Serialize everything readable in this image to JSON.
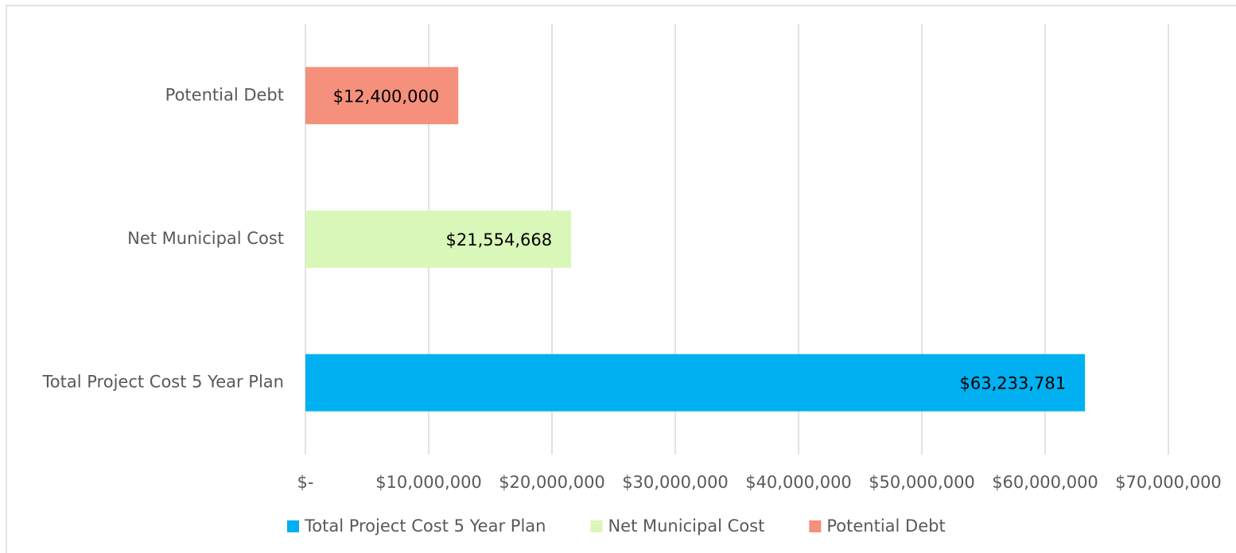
{
  "chart_data": {
    "type": "bar",
    "orientation": "horizontal",
    "categories": [
      "Total Project Cost 5 Year Plan",
      "Net Municipal Cost",
      "Potential Debt"
    ],
    "series": [
      {
        "name": "Total Project Cost 5 Year Plan",
        "color": "#00b0f0",
        "values": [
          63233781,
          null,
          null
        ],
        "value_labels": [
          "$63,233,781",
          null,
          null
        ]
      },
      {
        "name": "Net Municipal Cost",
        "color": "#d9f7b9",
        "values": [
          null,
          21554668,
          null
        ],
        "value_labels": [
          null,
          "$21,554,668",
          null
        ]
      },
      {
        "name": "Potential Debt",
        "color": "#f4907c",
        "values": [
          null,
          null,
          12400000
        ],
        "value_labels": [
          null,
          null,
          "$12,400,000"
        ]
      }
    ],
    "xlim": [
      0,
      70000000
    ],
    "xticks": [
      {
        "value": 0,
        "label": "$-"
      },
      {
        "value": 10000000,
        "label": "$10,000,000"
      },
      {
        "value": 20000000,
        "label": "$20,000,000"
      },
      {
        "value": 30000000,
        "label": "$30,000,000"
      },
      {
        "value": 40000000,
        "label": "$40,000,000"
      },
      {
        "value": 50000000,
        "label": "$50,000,000"
      },
      {
        "value": 60000000,
        "label": "$60,000,000"
      },
      {
        "value": 70000000,
        "label": "$70,000,000"
      }
    ],
    "grid": true,
    "legend": "bottom"
  }
}
